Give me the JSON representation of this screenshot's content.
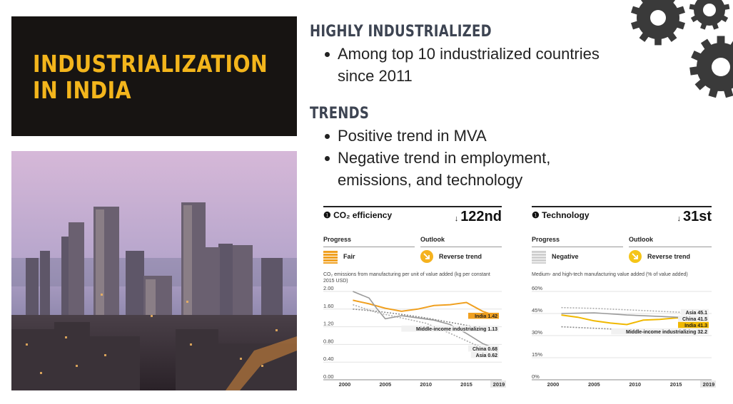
{
  "title": {
    "line1": "INDUSTRIALIZATION",
    "line2": "IN INDIA"
  },
  "sections": [
    {
      "heading": "HIGHLY INDUSTRIALIZED",
      "bullets": [
        "Among top 10 industrialized countries",
        "since 2011"
      ]
    },
    {
      "heading": "TRENDS",
      "bullets": [
        "Positive trend in MVA",
        "Negative trend in employment,",
        "emissions, and technology"
      ]
    }
  ],
  "colors": {
    "title_bg": "#171412",
    "accent": "#f3b51c",
    "heading": "#3d4452",
    "india": "#f0a020",
    "gear": "#3a3a3a"
  },
  "icons": [
    "gear-icon",
    "info-icon",
    "trend-arrow-icon"
  ],
  "panels": [
    {
      "title": "CO₂ efficiency",
      "rank_arrow": "↓",
      "rank": "122nd",
      "progress_label": "Progress",
      "outlook_label": "Outlook",
      "progress_status": "Fair",
      "progress_color": "#f0a020",
      "outlook_status": "Reverse trend",
      "outlook_color": "#f5b21e",
      "metric": "CO₂ emissions from manufacturing per unit of value added (kg per constant 2015 USD)"
    },
    {
      "title": "Technology",
      "rank_arrow": "↓",
      "rank": "31st",
      "progress_label": "Progress",
      "outlook_label": "Outlook",
      "progress_status": "Negative",
      "progress_color": "#cfcfcf",
      "outlook_status": "Reverse trend",
      "outlook_color": "#f5c518",
      "metric": "Medium- and high-tech manufacturing value added (% of value added)"
    }
  ],
  "chart_data": [
    {
      "type": "line",
      "title": "CO₂ efficiency",
      "x_ticks": [
        "2000",
        "2005",
        "2010",
        "2015",
        "2019"
      ],
      "y_ticks": [
        "0.00",
        "0.40",
        "0.80",
        "1.20",
        "1.60",
        "2.00"
      ],
      "xlim": [
        2000,
        2019
      ],
      "ylim": [
        0,
        2.0
      ],
      "series": [
        {
          "name": "India",
          "label": "India 1.42",
          "color": "#f0a020",
          "dashed": false,
          "x": [
            2001,
            2003,
            2005,
            2007,
            2009,
            2011,
            2013,
            2015,
            2017,
            2019
          ],
          "y": [
            1.8,
            1.72,
            1.62,
            1.55,
            1.6,
            1.68,
            1.7,
            1.75,
            1.55,
            1.42
          ]
        },
        {
          "name": "China",
          "label": "China 0.68",
          "color": "#9a9a9a",
          "dashed": false,
          "x": [
            2001,
            2003,
            2004,
            2005,
            2007,
            2009,
            2011,
            2013,
            2015,
            2017,
            2019
          ],
          "y": [
            2.0,
            1.85,
            1.6,
            1.38,
            1.45,
            1.4,
            1.35,
            1.25,
            1.05,
            0.82,
            0.68
          ]
        },
        {
          "name": "Middle-income industrializing",
          "label": "Middle-income industrializing 1.13",
          "color": "#888888",
          "dashed": true,
          "x": [
            2001,
            2004,
            2007,
            2010,
            2013,
            2016,
            2019
          ],
          "y": [
            1.6,
            1.55,
            1.48,
            1.4,
            1.3,
            1.2,
            1.13
          ]
        },
        {
          "name": "Asia",
          "label": "Asia 0.62",
          "color": "#aaaaaa",
          "dashed": true,
          "x": [
            2001,
            2004,
            2007,
            2010,
            2013,
            2016,
            2019
          ],
          "y": [
            1.7,
            1.52,
            1.4,
            1.28,
            1.05,
            0.8,
            0.62
          ]
        }
      ]
    },
    {
      "type": "line",
      "title": "Technology",
      "x_ticks": [
        "2000",
        "2005",
        "2010",
        "2015",
        "2019"
      ],
      "y_ticks": [
        "0%",
        "15%",
        "30%",
        "45%",
        "60%"
      ],
      "xlim": [
        2000,
        2019
      ],
      "ylim": [
        0,
        60
      ],
      "series": [
        {
          "name": "India",
          "label": "India 41.3",
          "color": "#f0b800",
          "dashed": false,
          "x": [
            2001,
            2003,
            2005,
            2007,
            2009,
            2011,
            2013,
            2015,
            2017,
            2019
          ],
          "y": [
            44.0,
            42.5,
            40.0,
            38.5,
            37.5,
            40.5,
            41.0,
            42.0,
            42.5,
            41.3
          ]
        },
        {
          "name": "China",
          "label": "China 41.5",
          "color": "#9a9a9a",
          "dashed": false,
          "x": [
            2001,
            2005,
            2009,
            2013,
            2017,
            2019
          ],
          "y": [
            45.0,
            45.5,
            44.0,
            43.0,
            42.0,
            41.5
          ]
        },
        {
          "name": "Asia",
          "label": "Asia 45.1",
          "color": "#aaaaaa",
          "dashed": true,
          "x": [
            2001,
            2005,
            2009,
            2013,
            2017,
            2019
          ],
          "y": [
            49.0,
            48.5,
            47.5,
            46.5,
            45.5,
            45.1
          ]
        },
        {
          "name": "Middle-income industrializing",
          "label": "Middle-income industrializing 32.2",
          "color": "#888888",
          "dashed": true,
          "x": [
            2001,
            2005,
            2009,
            2013,
            2017,
            2019
          ],
          "y": [
            36.0,
            35.0,
            34.0,
            33.5,
            33.0,
            32.2
          ]
        }
      ]
    }
  ]
}
